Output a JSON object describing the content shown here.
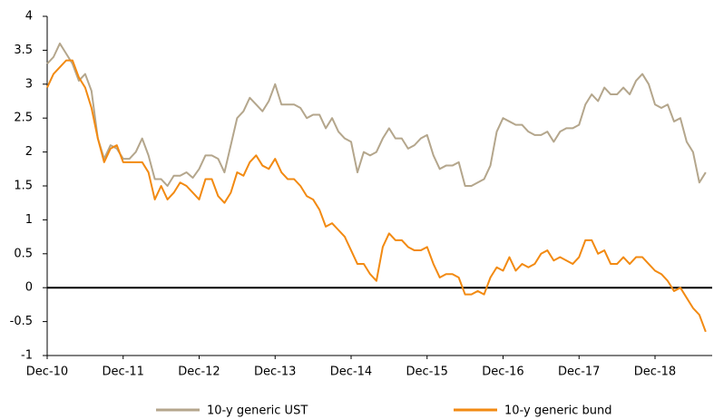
{
  "chart_data": {
    "type": "line",
    "categories": [
      "Dec-10",
      null,
      null,
      null,
      null,
      null,
      null,
      null,
      null,
      null,
      null,
      null,
      "Dec-11",
      null,
      null,
      null,
      null,
      null,
      null,
      null,
      null,
      null,
      null,
      null,
      "Dec-12",
      null,
      null,
      null,
      null,
      null,
      null,
      null,
      null,
      null,
      null,
      null,
      "Dec-13",
      null,
      null,
      null,
      null,
      null,
      null,
      null,
      null,
      null,
      null,
      null,
      "Dec-14",
      null,
      null,
      null,
      null,
      null,
      null,
      null,
      null,
      null,
      null,
      null,
      "Dec-15",
      null,
      null,
      null,
      null,
      null,
      null,
      null,
      null,
      null,
      null,
      null,
      "Dec-16",
      null,
      null,
      null,
      null,
      null,
      null,
      null,
      null,
      null,
      null,
      null,
      "Dec-17",
      null,
      null,
      null,
      null,
      null,
      null,
      null,
      null,
      null,
      null,
      null,
      "Dec-18",
      null,
      null,
      null,
      null,
      null,
      null,
      null,
      null
    ],
    "series": [
      {
        "name": "10-y generic UST",
        "color": "#b4a68c",
        "values": [
          3.3,
          3.4,
          3.6,
          3.45,
          3.3,
          3.05,
          3.15,
          2.9,
          2.2,
          1.9,
          2.1,
          2.05,
          1.9,
          1.9,
          2.0,
          2.2,
          1.95,
          1.6,
          1.6,
          1.5,
          1.65,
          1.65,
          1.7,
          1.62,
          1.75,
          1.95,
          1.95,
          1.9,
          1.7,
          2.1,
          2.5,
          2.6,
          2.8,
          2.7,
          2.6,
          2.75,
          3.0,
          2.7,
          2.7,
          2.7,
          2.65,
          2.5,
          2.55,
          2.55,
          2.35,
          2.5,
          2.3,
          2.2,
          2.15,
          1.7,
          2.0,
          1.95,
          2.0,
          2.2,
          2.35,
          2.2,
          2.2,
          2.05,
          2.1,
          2.2,
          2.25,
          1.95,
          1.75,
          1.8,
          1.8,
          1.85,
          1.5,
          1.5,
          1.55,
          1.6,
          1.8,
          2.3,
          2.5,
          2.45,
          2.4,
          2.4,
          2.3,
          2.25,
          2.25,
          2.3,
          2.15,
          2.3,
          2.35,
          2.35,
          2.4,
          2.7,
          2.85,
          2.75,
          2.95,
          2.85,
          2.85,
          2.95,
          2.85,
          3.05,
          3.15,
          3.0,
          2.7,
          2.65,
          2.7,
          2.45,
          2.5,
          2.15,
          2.0,
          1.55,
          1.7
        ]
      },
      {
        "name": "10-y generic bund",
        "color": "#f28a12",
        "values": [
          2.95,
          3.15,
          3.25,
          3.35,
          3.35,
          3.1,
          2.95,
          2.65,
          2.2,
          1.85,
          2.05,
          2.1,
          1.85,
          1.85,
          1.85,
          1.85,
          1.7,
          1.3,
          1.5,
          1.3,
          1.4,
          1.55,
          1.5,
          1.4,
          1.3,
          1.6,
          1.6,
          1.35,
          1.25,
          1.4,
          1.7,
          1.65,
          1.85,
          1.95,
          1.8,
          1.75,
          1.9,
          1.7,
          1.6,
          1.6,
          1.5,
          1.35,
          1.3,
          1.15,
          0.9,
          0.95,
          0.85,
          0.75,
          0.55,
          0.35,
          0.35,
          0.2,
          0.1,
          0.6,
          0.8,
          0.7,
          0.7,
          0.6,
          0.55,
          0.55,
          0.6,
          0.35,
          0.15,
          0.2,
          0.2,
          0.15,
          -0.1,
          -0.1,
          -0.05,
          -0.1,
          0.15,
          0.3,
          0.25,
          0.45,
          0.25,
          0.35,
          0.3,
          0.35,
          0.5,
          0.55,
          0.4,
          0.45,
          0.4,
          0.35,
          0.45,
          0.7,
          0.7,
          0.5,
          0.55,
          0.35,
          0.35,
          0.45,
          0.35,
          0.45,
          0.45,
          0.35,
          0.25,
          0.2,
          0.1,
          -0.05,
          0,
          -0.15,
          -0.3,
          -0.4,
          -0.65
        ]
      }
    ],
    "ylim": [
      -1,
      4
    ],
    "yticks": [
      -1,
      -0.5,
      0,
      0.5,
      1,
      1.5,
      2,
      2.5,
      3,
      3.5,
      4
    ]
  }
}
